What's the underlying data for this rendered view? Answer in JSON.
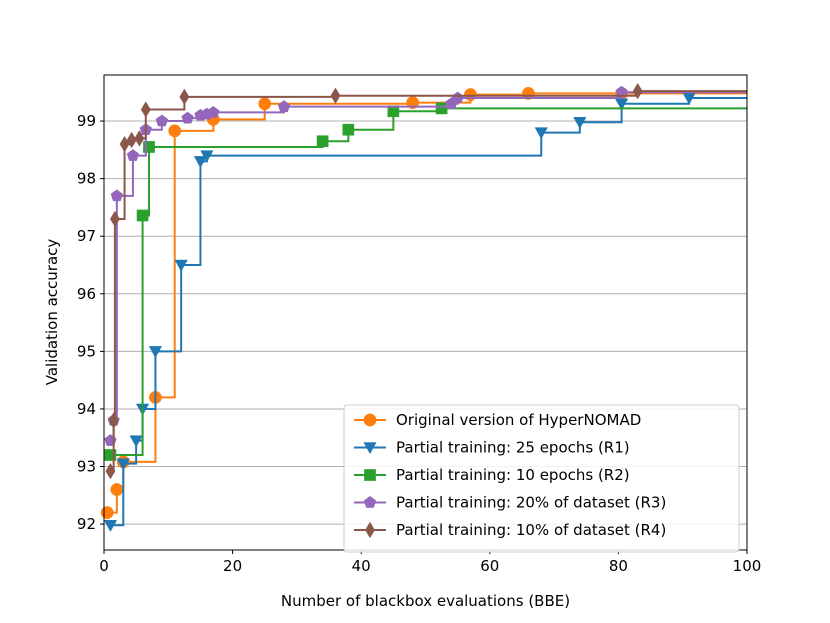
{
  "chart_data": {
    "type": "line",
    "title": "",
    "xlabel": "Number of blackbox evaluations (BBE)",
    "ylabel": "Validation accuracy",
    "xlim": [
      0,
      100
    ],
    "ylim": [
      91.55,
      99.8
    ],
    "xticks": [
      0,
      20,
      40,
      60,
      80,
      100
    ],
    "yticks": [
      92,
      93,
      94,
      95,
      96,
      97,
      98,
      99
    ],
    "grid": "horizontal",
    "legend_position": "lower-right",
    "series": [
      {
        "name": "Original version of HyperNOMAD",
        "color": "#ff7f0e",
        "marker": "circle",
        "x": [
          0.5,
          2,
          3,
          8,
          11,
          17,
          25,
          48,
          57,
          66,
          80.5,
          100
        ],
        "y": [
          92.2,
          92.6,
          93.08,
          94.2,
          98.83,
          99.03,
          99.3,
          99.32,
          99.46,
          99.48,
          99.48,
          99.48
        ]
      },
      {
        "name": "Partial training: 25 epochs (R1)",
        "color": "#1f77b4",
        "marker": "triangle-down",
        "x": [
          1,
          3,
          5,
          6,
          8,
          12,
          15,
          16,
          68,
          74,
          80.5,
          91,
          100
        ],
        "y": [
          91.98,
          93.05,
          93.45,
          94.0,
          95.0,
          96.5,
          98.3,
          98.4,
          98.8,
          98.98,
          99.3,
          99.4,
          99.4
        ]
      },
      {
        "name": "Partial training: 10 epochs (R2)",
        "color": "#2ca02c",
        "marker": "square",
        "x": [
          1,
          6,
          7,
          34,
          38,
          45,
          52.5,
          100
        ],
        "y": [
          93.2,
          97.36,
          98.55,
          98.65,
          98.85,
          99.17,
          99.22,
          99.22
        ]
      },
      {
        "name": "Partial training: 20% of dataset (R3)",
        "color": "#9467bd",
        "marker": "pentagon",
        "x": [
          1,
          1.5,
          2,
          4.5,
          6.5,
          9,
          13,
          15,
          16,
          17,
          28,
          54,
          55,
          80.5,
          100
        ],
        "y": [
          93.45,
          93.8,
          97.7,
          98.4,
          98.85,
          99.0,
          99.05,
          99.1,
          99.12,
          99.15,
          99.25,
          99.3,
          99.4,
          99.5,
          99.5
        ]
      },
      {
        "name": "Partial training: 10% of dataset (R4)",
        "color": "#8c564b",
        "marker": "diamond",
        "x": [
          1,
          1.5,
          1.7,
          3.2,
          4.3,
          5.5,
          6.5,
          12.5,
          36,
          83,
          100
        ],
        "y": [
          92.92,
          93.8,
          97.3,
          98.6,
          98.67,
          98.7,
          99.2,
          99.42,
          99.44,
          99.52,
          99.52
        ]
      }
    ]
  }
}
